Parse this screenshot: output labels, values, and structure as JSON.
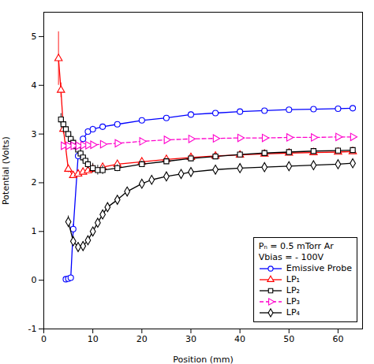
{
  "chart_data": {
    "type": "line",
    "xlabel": "Position (mm)",
    "ylabel": "Potential (Volts)",
    "xlim": [
      0,
      65
    ],
    "ylim": [
      -1,
      5.5
    ],
    "xticks": [
      0,
      10,
      20,
      30,
      40,
      50,
      60
    ],
    "yticks": [
      -1,
      0,
      1,
      2,
      3,
      4,
      5
    ],
    "legend": "lower right",
    "annotations": [
      "Pₙ = 0.5 mTorr Ar",
      "Vbias = - 100V"
    ],
    "series": [
      {
        "name": "Emissive Probe",
        "color": "#0000FF",
        "marker": "circle",
        "line_style": "solid",
        "x": [
          4.5,
          5.0,
          5.5,
          6.0,
          7.0,
          8.0,
          9.0,
          10.0,
          12.0,
          15.0,
          20.0,
          25.0,
          30.0,
          35.0,
          40.0,
          45.0,
          50.0,
          55.0,
          60.0,
          63.0
        ],
        "values": [
          0.02,
          0.03,
          0.05,
          1.05,
          2.55,
          2.9,
          3.05,
          3.1,
          3.15,
          3.2,
          3.28,
          3.33,
          3.4,
          3.43,
          3.46,
          3.48,
          3.5,
          3.51,
          3.52,
          3.53
        ],
        "yerr": [
          0.03,
          0.03,
          0.03,
          0.1,
          0.07,
          0.06,
          0.06,
          0.06,
          0.05,
          0.05,
          0.05,
          0.05,
          0.05,
          0.04,
          0.04,
          0.04,
          0.04,
          0.04,
          0.04,
          0.04
        ]
      },
      {
        "name": "LP₁",
        "color": "#FF0000",
        "marker": "triangle-up",
        "line_style": "solid",
        "x": [
          3.0,
          3.5,
          4.0,
          5.0,
          6.0,
          7.0,
          8.0,
          9.0,
          10.0,
          12.0,
          15.0,
          20.0,
          25.0,
          30.0,
          35.0,
          40.0,
          45.0,
          50.0,
          55.0,
          60.0,
          63.0
        ],
        "values": [
          4.55,
          3.9,
          3.1,
          2.28,
          2.15,
          2.18,
          2.22,
          2.25,
          2.28,
          2.32,
          2.38,
          2.43,
          2.48,
          2.52,
          2.55,
          2.57,
          2.59,
          2.61,
          2.62,
          2.63,
          2.64
        ],
        "yerr": [
          0.55,
          0.15,
          0.1,
          0.07,
          0.06,
          0.05,
          0.05,
          0.05,
          0.05,
          0.05,
          0.05,
          0.05,
          0.05,
          0.05,
          0.04,
          0.04,
          0.04,
          0.04,
          0.04,
          0.04,
          0.04
        ]
      },
      {
        "name": "LP₂",
        "color": "#000000",
        "marker": "square",
        "line_style": "solid",
        "x": [
          3.5,
          4.0,
          4.5,
          5.0,
          5.5,
          6.0,
          6.5,
          7.0,
          7.5,
          8.0,
          8.5,
          9.0,
          10.0,
          11.0,
          12.0,
          15.0,
          20.0,
          25.0,
          30.0,
          35.0,
          40.0,
          45.0,
          50.0,
          55.0,
          60.0,
          63.0
        ],
        "values": [
          3.3,
          3.2,
          3.1,
          3.0,
          2.9,
          2.82,
          2.75,
          2.68,
          2.6,
          2.52,
          2.45,
          2.38,
          2.3,
          2.26,
          2.26,
          2.3,
          2.38,
          2.44,
          2.5,
          2.54,
          2.58,
          2.61,
          2.63,
          2.65,
          2.66,
          2.67
        ],
        "yerr": [
          0.12,
          0.11,
          0.1,
          0.1,
          0.1,
          0.09,
          0.09,
          0.09,
          0.09,
          0.09,
          0.09,
          0.09,
          0.1,
          0.1,
          0.09,
          0.07,
          0.06,
          0.06,
          0.06,
          0.06,
          0.06,
          0.06,
          0.06,
          0.05,
          0.05,
          0.05
        ]
      },
      {
        "name": "LP₃",
        "color": "#FF00CC",
        "marker": "triangle-right",
        "line_style": "dashed",
        "x": [
          4.0,
          5.0,
          6.0,
          7.0,
          8.0,
          9.0,
          10.0,
          12.0,
          15.0,
          20.0,
          25.0,
          30.0,
          35.0,
          40.0,
          45.0,
          50.0,
          55.0,
          60.0,
          63.0
        ],
        "values": [
          2.76,
          2.76,
          2.76,
          2.76,
          2.77,
          2.77,
          2.78,
          2.79,
          2.81,
          2.85,
          2.88,
          2.9,
          2.91,
          2.92,
          2.92,
          2.93,
          2.93,
          2.94,
          2.94
        ],
        "yerr": [
          0.05,
          0.05,
          0.05,
          0.05,
          0.05,
          0.05,
          0.05,
          0.05,
          0.05,
          0.04,
          0.04,
          0.04,
          0.04,
          0.04,
          0.04,
          0.04,
          0.04,
          0.04,
          0.04
        ]
      },
      {
        "name": "LP₄",
        "color": "#000000",
        "marker": "diamond",
        "line_style": "solid",
        "x": [
          5.0,
          6.0,
          7.0,
          8.0,
          9.0,
          10.0,
          11.0,
          12.0,
          13.0,
          15.0,
          17.0,
          20.0,
          22.0,
          25.0,
          28.0,
          30.0,
          35.0,
          40.0,
          45.0,
          50.0,
          55.0,
          60.0,
          63.0
        ],
        "values": [
          1.2,
          0.8,
          0.68,
          0.7,
          0.82,
          1.0,
          1.18,
          1.35,
          1.5,
          1.65,
          1.82,
          1.98,
          2.06,
          2.13,
          2.18,
          2.22,
          2.27,
          2.3,
          2.32,
          2.34,
          2.36,
          2.38,
          2.4
        ],
        "yerr": [
          0.12,
          0.1,
          0.09,
          0.09,
          0.08,
          0.08,
          0.07,
          0.07,
          0.07,
          0.07,
          0.06,
          0.06,
          0.06,
          0.06,
          0.06,
          0.06,
          0.06,
          0.06,
          0.06,
          0.05,
          0.05,
          0.05,
          0.05
        ]
      }
    ]
  }
}
